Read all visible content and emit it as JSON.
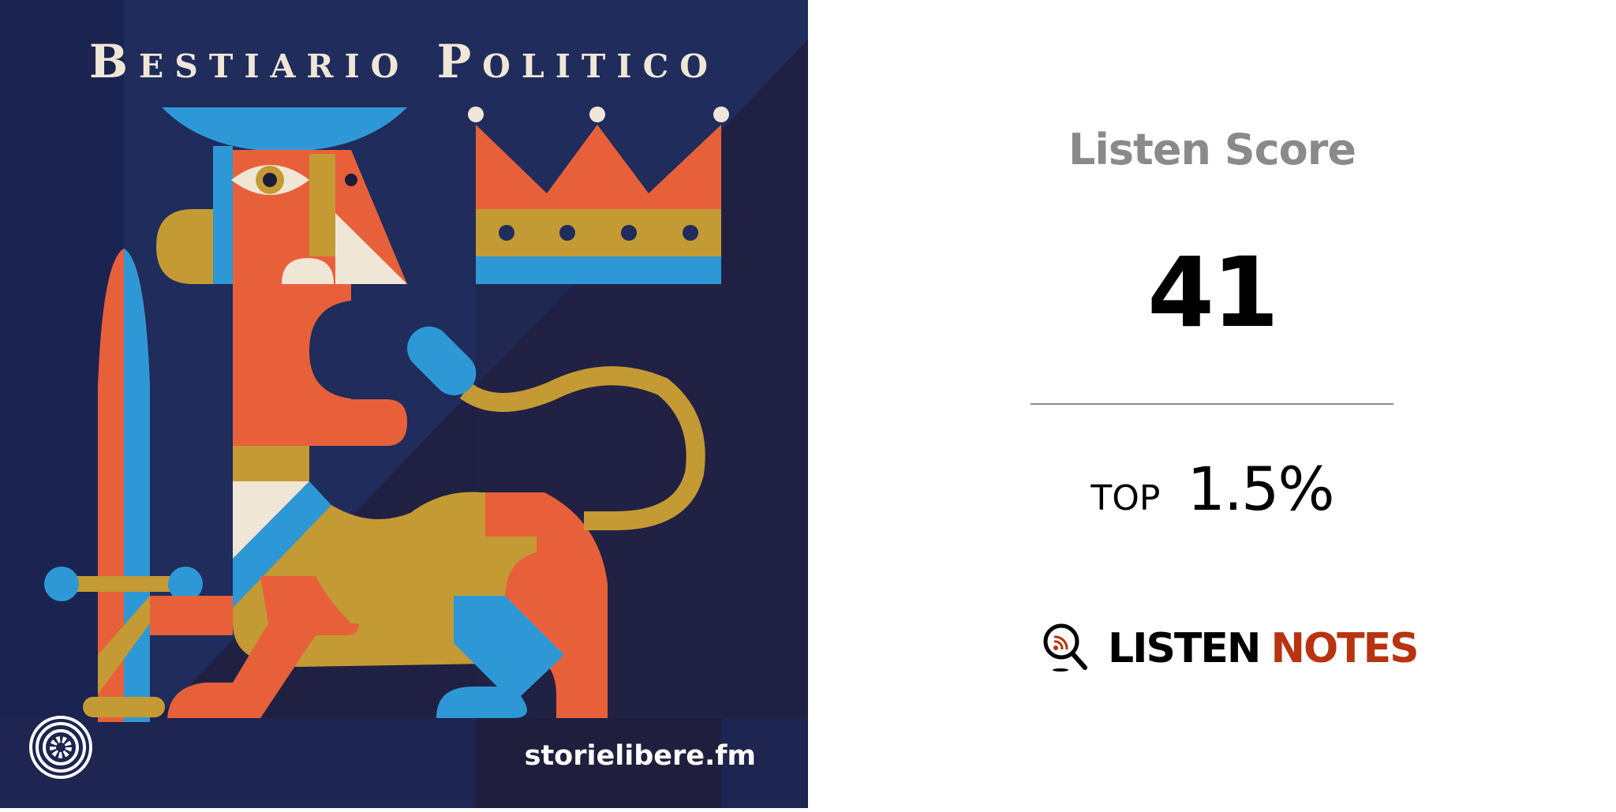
{
  "cover": {
    "title": "Bestiario Politico",
    "footer_url": "storielibere.fm",
    "publisher_logo_icon": "storie-libere-gear-logo",
    "colors": {
      "navy": "#1f2b5a",
      "orange": "#e8603a",
      "gold": "#c49a34",
      "blue": "#2e98d6",
      "cream": "#efe6d6"
    }
  },
  "panel": {
    "label": "Listen Score",
    "score": "41",
    "top_label": "TOP",
    "top_percent": "1.5%",
    "brand": {
      "icon": "magnifier-rss-icon",
      "word1": "LISTEN",
      "word2": "NOTES",
      "accent": "#b8330f"
    }
  }
}
